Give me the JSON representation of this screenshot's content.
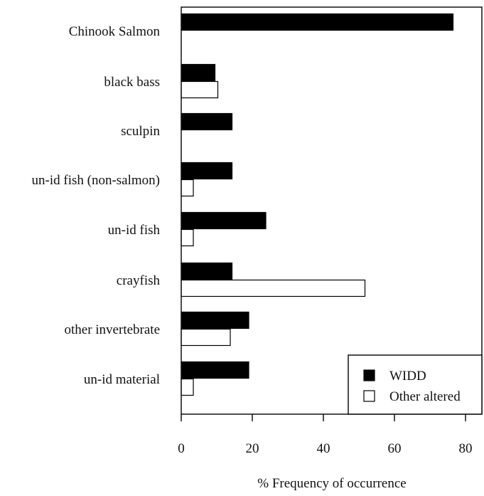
{
  "chart_data": {
    "type": "bar",
    "orientation": "horizontal",
    "categories": [
      "Chinook Salmon",
      "black bass",
      "sculpin",
      "un-id fish (non-salmon)",
      "un-id fish",
      "crayfish",
      "other invertebrate",
      "un-id material"
    ],
    "series": [
      {
        "name": "WIDD",
        "color": "#000000",
        "values": [
          76.5,
          9.5,
          14.3,
          14.3,
          23.8,
          14.3,
          19.0,
          19.0
        ]
      },
      {
        "name": "Other altered",
        "color": "#ffffff",
        "values": [
          0,
          10.3,
          0,
          3.4,
          3.4,
          51.7,
          13.8,
          3.4
        ]
      }
    ],
    "xlabel": "% Frequency of occurrence",
    "ylabel": "",
    "xlim": [
      0,
      85
    ],
    "xticks": [
      0,
      20,
      40,
      60,
      80
    ],
    "grid": false,
    "legend_position": "bottom-right"
  }
}
